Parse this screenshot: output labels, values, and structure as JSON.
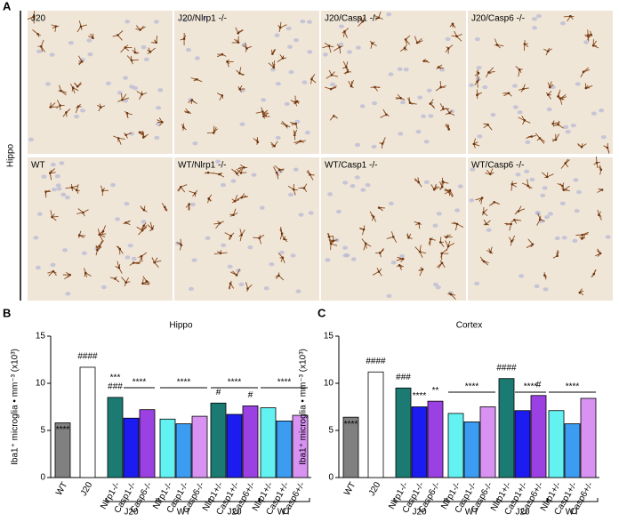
{
  "panel_a": {
    "label": "A",
    "region": "Hippo",
    "images": [
      "J20",
      "J20/Nlrp1 -/-",
      "J20/Casp1 -/-",
      "J20/Casp6 -/-",
      "WT",
      "WT/Nlrp1 -/-",
      "WT/Casp1 -/-",
      "WT/Casp6 -/-"
    ]
  },
  "chart_data": [
    {
      "type": "bar",
      "panel": "B",
      "title": "Hippo",
      "ylabel": "Iba1⁺ microglia • mm⁻³ (x10³)",
      "categories": [
        "WT",
        "J20",
        "Nlrp1-/-",
        "Casp1-/-",
        "Casp6-/-",
        "Nlrp1-/-",
        "Casp1-/-",
        "Casp6-/-",
        "Nlrp1+/-",
        "Casp1+/-",
        "Casp6+/-",
        "Nlrp1+/-",
        "Casp1+/-",
        "Casp6+/-"
      ],
      "values": [
        5.8,
        11.7,
        8.5,
        6.3,
        7.2,
        6.2,
        5.7,
        6.5,
        7.9,
        6.7,
        7.6,
        7.4,
        6.0,
        6.6
      ],
      "colors": [
        "#808080",
        "#ffffff",
        "#1b7b73",
        "#1c1cf0",
        "#9b40e2",
        "#63f2f2",
        "#3b9cf2",
        "#d892f2",
        "#1b7b73",
        "#1c1cf0",
        "#9b40e2",
        "#63f2f2",
        "#3b9cf2",
        "#d892f2"
      ],
      "ylim": [
        0,
        15
      ],
      "yticks": [
        0,
        5,
        10,
        15
      ],
      "annotations": [
        [
          "****"
        ],
        [
          "####"
        ],
        [
          "###",
          "***"
        ],
        null,
        null,
        null,
        null,
        null,
        [
          "#"
        ],
        null,
        [
          "#"
        ],
        null,
        null,
        null
      ],
      "brackets": [
        {
          "label": "****",
          "first": 3,
          "last": 4
        },
        {
          "label": "****",
          "first": 5,
          "last": 7
        },
        {
          "label": "****",
          "first": 8,
          "last": 10
        },
        {
          "label": "****",
          "first": 11,
          "last": 13
        }
      ],
      "groups": [
        "J20",
        "WT",
        "J20",
        "WT"
      ]
    },
    {
      "type": "bar",
      "panel": "C",
      "title": "Cortex",
      "ylabel": "Iba1⁺ microglia • mm⁻³ (x10³)",
      "categories": [
        "WT",
        "J20",
        "Nlrp1-/-",
        "Casp1-/-",
        "Casp6-/-",
        "Nlrp1-/-",
        "Casp1-/-",
        "Casp6-/-",
        "Nlrp1+/-",
        "Casp1+/-",
        "Casp6+/-",
        "Nlrp1+/-",
        "Casp1+/-",
        "Casp6+/-"
      ],
      "values": [
        6.4,
        11.2,
        9.5,
        7.5,
        8.1,
        6.8,
        5.9,
        7.5,
        10.5,
        7.1,
        8.7,
        7.1,
        5.7,
        8.4
      ],
      "colors": [
        "#808080",
        "#ffffff",
        "#1b7b73",
        "#1c1cf0",
        "#9b40e2",
        "#63f2f2",
        "#3b9cf2",
        "#d892f2",
        "#1b7b73",
        "#1c1cf0",
        "#9b40e2",
        "#63f2f2",
        "#3b9cf2",
        "#d892f2"
      ],
      "ylim": [
        0,
        15
      ],
      "yticks": [
        0,
        5,
        10,
        15
      ],
      "annotations": [
        [
          "****"
        ],
        [
          "####"
        ],
        [
          "###"
        ],
        [
          "****"
        ],
        [
          "**"
        ],
        null,
        null,
        null,
        [
          "####"
        ],
        null,
        [
          "#"
        ],
        null,
        null,
        null
      ],
      "brackets": [
        {
          "label": "****",
          "first": 5,
          "last": 7
        },
        {
          "label": "****",
          "first": 9,
          "last": 10
        },
        {
          "label": "****",
          "first": 11,
          "last": 13
        }
      ],
      "groups": [
        "J20",
        "WT",
        "J20",
        "WT"
      ]
    }
  ]
}
